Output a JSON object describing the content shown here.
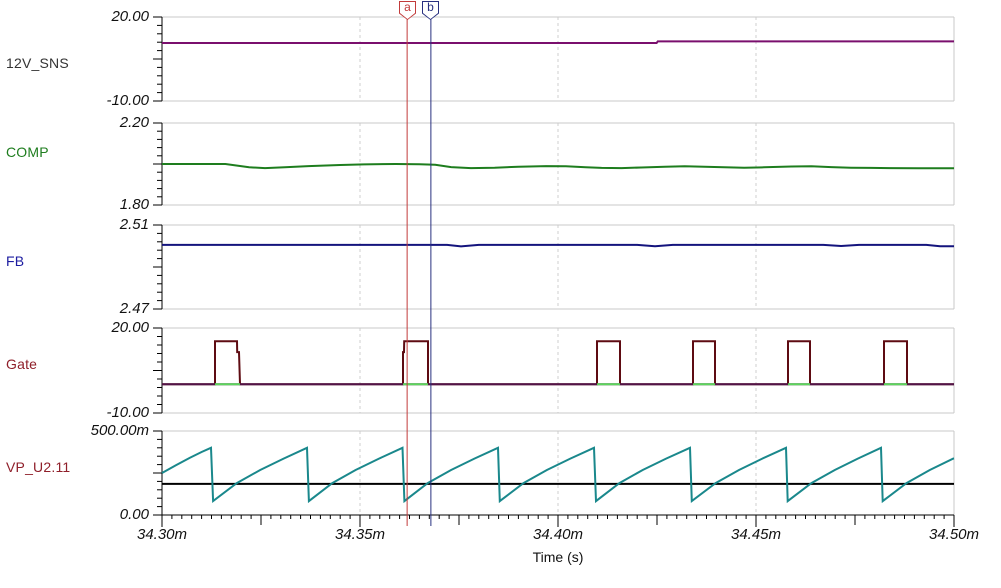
{
  "chart_data": {
    "type": "line",
    "title": "",
    "xlabel": "Time (s)",
    "x_ticks": [
      "34.30m",
      "34.35m",
      "34.40m",
      "34.45m",
      "34.50m"
    ],
    "x_range_ms": [
      34.3,
      34.5
    ],
    "x_tick_step_ms": 0.05,
    "x_minor_step_ms": 0.0025,
    "grid": "major-vertical-dashed",
    "cursors": [
      {
        "label": "a",
        "time_ms": 34.3619,
        "color": "#c23b3b"
      },
      {
        "label": "b",
        "time_ms": 34.3679,
        "color": "#283080"
      }
    ],
    "panels": [
      {
        "label": "12V_SNS",
        "label_color": "#333333",
        "y_top_label": "20.00",
        "y_bottom_label": "-10.00",
        "vmin": -10,
        "vmax": 20,
        "traces": [
          {
            "name": "12V_SNS",
            "color": "#7a0f6d",
            "width": 2,
            "points": [
              [
                34.3,
                10.72
              ],
              [
                34.4249,
                10.72
              ],
              [
                34.4252,
                11.28
              ],
              [
                34.5,
                11.28
              ]
            ]
          }
        ]
      },
      {
        "label": "COMP",
        "label_color": "#1e7d1e",
        "y_top_label": "2.20",
        "y_bottom_label": "1.80",
        "vmin": 1.8,
        "vmax": 2.2,
        "traces": [
          {
            "name": "COMP",
            "color": "#1e7d1e",
            "width": 2,
            "points": [
              [
                34.3,
                2.0
              ],
              [
                34.316,
                2.0
              ],
              [
                34.322,
                1.984
              ],
              [
                34.326,
                1.98
              ],
              [
                34.331,
                1.984
              ],
              [
                34.337,
                1.99
              ],
              [
                34.345,
                1.995
              ],
              [
                34.351,
                1.998
              ],
              [
                34.359,
                2.0
              ],
              [
                34.365,
                1.999
              ],
              [
                34.369,
                1.996
              ],
              [
                34.373,
                1.985
              ],
              [
                34.378,
                1.98
              ],
              [
                34.384,
                1.982
              ],
              [
                34.39,
                1.987
              ],
              [
                34.397,
                1.99
              ],
              [
                34.402,
                1.989
              ],
              [
                34.407,
                1.984
              ],
              [
                34.411,
                1.981
              ],
              [
                34.416,
                1.98
              ],
              [
                34.421,
                1.983
              ],
              [
                34.427,
                1.987
              ],
              [
                34.432,
                1.989
              ],
              [
                34.437,
                1.987
              ],
              [
                34.442,
                1.984
              ],
              [
                34.447,
                1.982
              ],
              [
                34.452,
                1.984
              ],
              [
                34.459,
                1.988
              ],
              [
                34.464,
                1.989
              ],
              [
                34.469,
                1.985
              ],
              [
                34.474,
                1.982
              ],
              [
                34.479,
                1.981
              ],
              [
                34.484,
                1.98
              ],
              [
                34.491,
                1.979
              ],
              [
                34.5,
                1.979
              ]
            ]
          }
        ]
      },
      {
        "label": "FB",
        "label_color": "#1c1ca0",
        "y_top_label": "2.51",
        "y_bottom_label": "2.47",
        "vmin": 2.47,
        "vmax": 2.51,
        "traces": [
          {
            "name": "FB",
            "color": "#14147d",
            "width": 2,
            "points": [
              [
                34.3,
                2.5005
              ],
              [
                34.372,
                2.5005
              ],
              [
                34.3755,
                2.4998
              ],
              [
                34.38,
                2.5005
              ],
              [
                34.42,
                2.5005
              ],
              [
                34.4245,
                2.4999
              ],
              [
                34.429,
                2.5005
              ],
              [
                34.467,
                2.5005
              ],
              [
                34.4715,
                2.5
              ],
              [
                34.476,
                2.5005
              ],
              [
                34.493,
                2.5005
              ],
              [
                34.4965,
                2.4999
              ],
              [
                34.5,
                2.4999
              ]
            ]
          }
        ]
      },
      {
        "label": "Gate",
        "label_color": "#8f1f2a",
        "y_top_label": "20.00",
        "y_bottom_label": "-10.00",
        "vmin": -10,
        "vmax": 20,
        "pulse_high_v": 15.3,
        "pulse_low_v": 0.15,
        "traces": [
          {
            "name": "Gate",
            "color": "#5e0b12",
            "width": 2,
            "points": [
              [
                34.3,
                0.15
              ],
              [
                34.31338,
                0.15
              ],
              [
                34.31338,
                15.3
              ],
              [
                34.31894,
                15.3
              ],
              [
                34.31899,
                11.5
              ],
              [
                34.31944,
                11.5
              ],
              [
                34.3197,
                0.15
              ],
              [
                34.36086,
                0.15
              ],
              [
                34.36086,
                11.5
              ],
              [
                34.36111,
                11.5
              ],
              [
                34.36116,
                15.3
              ],
              [
                34.36717,
                15.3
              ],
              [
                34.36717,
                0.15
              ],
              [
                34.40985,
                0.15
              ],
              [
                34.40985,
                15.3
              ],
              [
                34.41566,
                15.3
              ],
              [
                34.41566,
                0.15
              ],
              [
                34.43409,
                0.15
              ],
              [
                34.43409,
                15.3
              ],
              [
                34.43965,
                15.3
              ],
              [
                34.43965,
                0.15
              ],
              [
                34.45808,
                0.15
              ],
              [
                34.45808,
                15.3
              ],
              [
                34.46364,
                15.3
              ],
              [
                34.46364,
                0.15
              ],
              [
                34.48232,
                0.15
              ],
              [
                34.48232,
                15.3
              ],
              [
                34.48813,
                15.3
              ],
              [
                34.48813,
                0.15
              ],
              [
                34.5,
                0.15
              ]
            ]
          },
          {
            "name": "gate-baseline",
            "color": "#521448",
            "width": 2,
            "points": [
              [
                34.3,
                0.15
              ],
              [
                34.5,
                0.15
              ]
            ]
          },
          {
            "name": "gate-baseline-green",
            "color": "#5cd65c",
            "width": 2,
            "value": 0.15,
            "segments": [
              [
                34.31338,
                34.3197
              ],
              [
                34.36086,
                34.36717
              ],
              [
                34.40985,
                34.41566
              ],
              [
                34.43409,
                34.43965
              ],
              [
                34.45808,
                34.46364
              ],
              [
                34.48232,
                34.48813
              ]
            ]
          }
        ]
      },
      {
        "label": "VP_U2.11",
        "label_color": "#8f1f2a",
        "y_top_label": "500.00m",
        "y_bottom_label": "0.00",
        "vmin": 0,
        "vmax": 500,
        "unit": "m",
        "traces": [
          {
            "name": "vp-reference",
            "color": "#000000",
            "width": 2,
            "points": [
              [
                34.3,
                185
              ],
              [
                34.5,
                185
              ]
            ]
          },
          {
            "name": "VP_U2.11",
            "color": "#1a888c",
            "width": 2,
            "points": [
              [
                34.3,
                250
              ],
              [
                34.3035,
                296
              ],
              [
                34.307,
                340
              ],
              [
                34.31,
                375
              ],
              [
                34.31237,
                400
              ],
              [
                34.3129,
                83
              ],
              [
                34.3189,
                190
              ],
              [
                34.3248,
                268
              ],
              [
                34.3307,
                336
              ],
              [
                34.33661,
                400
              ],
              [
                34.3371,
                83
              ],
              [
                34.343,
                190
              ],
              [
                34.3489,
                268
              ],
              [
                34.3548,
                336
              ],
              [
                34.36073,
                400
              ],
              [
                34.3612,
                83
              ],
              [
                34.3671,
                190
              ],
              [
                34.373,
                268
              ],
              [
                34.3789,
                336
              ],
              [
                34.38485,
                400
              ],
              [
                34.3853,
                83
              ],
              [
                34.3913,
                190
              ],
              [
                34.3972,
                268
              ],
              [
                34.4031,
                336
              ],
              [
                34.40909,
                400
              ],
              [
                34.4096,
                83
              ],
              [
                34.4155,
                190
              ],
              [
                34.4214,
                268
              ],
              [
                34.4273,
                336
              ],
              [
                34.43333,
                400
              ],
              [
                34.4338,
                83
              ],
              [
                34.4398,
                190
              ],
              [
                34.4457,
                268
              ],
              [
                34.4516,
                336
              ],
              [
                34.45758,
                400
              ],
              [
                34.458,
                83
              ],
              [
                34.464,
                190
              ],
              [
                34.4699,
                268
              ],
              [
                34.4757,
                336
              ],
              [
                34.48157,
                400
              ],
              [
                34.482,
                83
              ],
              [
                34.488,
                190
              ],
              [
                34.4939,
                268
              ],
              [
                34.4998,
                336
              ],
              [
                34.5,
                337
              ]
            ]
          }
        ]
      }
    ],
    "colors": {
      "grid": "#c9c9c9",
      "axis": "#000000",
      "text": "#111111"
    }
  }
}
